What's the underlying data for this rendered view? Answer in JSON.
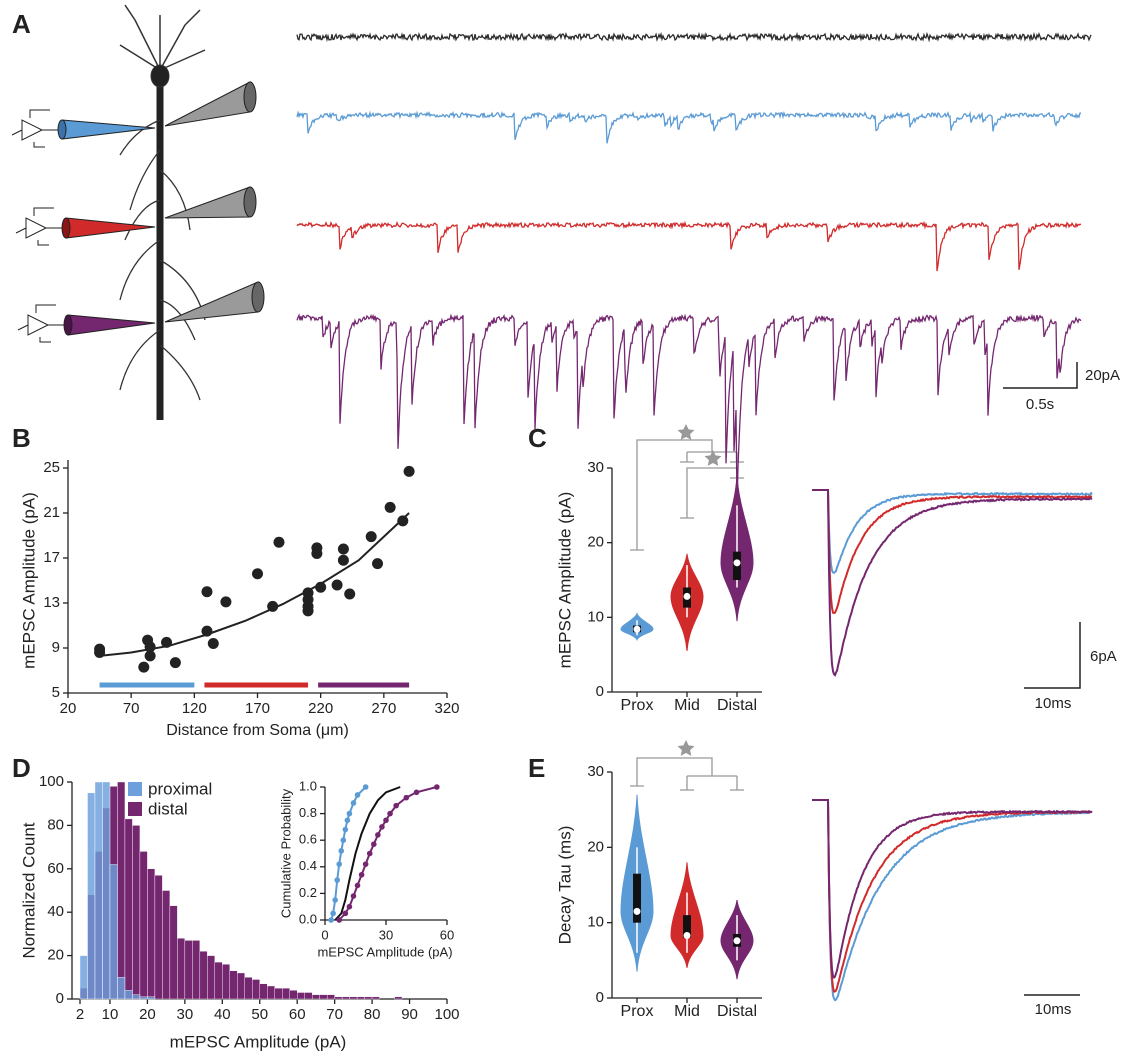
{
  "chart_data": [
    {
      "type": "traces",
      "panel": "A",
      "traces": [
        {
          "color": "#2b2b2b"
        },
        {
          "color": "#5b9bd5"
        },
        {
          "color": "#d12a2a"
        },
        {
          "color": "#74266f"
        }
      ],
      "scale_labels": [
        "20pA",
        "0.5s"
      ]
    },
    {
      "type": "scatter",
      "panel": "B",
      "xlabel": "Distance from Soma (μm)",
      "ylabel": "mEPSC Amplitude (pA)",
      "xlim": [
        20,
        320
      ],
      "xticks": [
        20,
        70,
        120,
        170,
        220,
        270,
        320
      ],
      "ylim": [
        5,
        25
      ],
      "yticks": [
        5,
        9,
        13,
        17,
        21,
        25
      ],
      "series": [
        {
          "color": "#222222",
          "x": [
            45,
            45,
            80,
            83,
            85,
            85,
            98,
            105,
            130,
            130,
            135,
            145,
            170,
            182,
            187,
            210,
            210,
            210,
            210,
            217,
            217,
            220,
            233,
            238,
            238,
            243,
            260,
            265,
            275,
            285,
            290
          ],
          "values": [
            8.9,
            8.6,
            7.3,
            9.7,
            8.3,
            9.1,
            9.5,
            7.7,
            14.0,
            10.5,
            9.4,
            13.1,
            15.6,
            12.7,
            18.4,
            13.9,
            13.3,
            12.3,
            12.7,
            17.4,
            17.9,
            14.4,
            14.6,
            17.8,
            16.8,
            13.8,
            18.9,
            16.5,
            21.5,
            20.3,
            24.7
          ]
        }
      ],
      "fit": {
        "color": "#222222",
        "x": [
          45,
          70,
          100,
          130,
          160,
          190,
          220,
          250,
          290
        ],
        "values": [
          8.3,
          8.6,
          9.2,
          10.2,
          11.4,
          12.9,
          14.7,
          16.8,
          21.0
        ]
      },
      "bands": [
        {
          "color": "#5b9bd5",
          "range": [
            45,
            120
          ]
        },
        {
          "color": "#d12a2a",
          "range": [
            128,
            210
          ]
        },
        {
          "color": "#74266f",
          "range": [
            218,
            290
          ]
        }
      ]
    },
    {
      "type": "violin",
      "panel": "C",
      "ylabel": "mEPSC Amplitude (pA)",
      "categories": [
        "Prox",
        "Mid",
        "Distal"
      ],
      "colors": [
        "#5b9bd5",
        "#d12a2a",
        "#74266f"
      ],
      "ylim": [
        0,
        30
      ],
      "yticks": [
        0,
        10,
        20,
        30
      ],
      "medians": [
        8.4,
        12.8,
        17.3
      ],
      "q1": [
        8.0,
        11.3,
        15.0
      ],
      "q3": [
        8.9,
        14.0,
        18.8
      ],
      "whisker_low": [
        7.6,
        10.0,
        14.0
      ],
      "whisker_high": [
        9.6,
        17.0,
        25.0
      ],
      "min": [
        7.0,
        5.5,
        9.5
      ],
      "max": [
        10.5,
        18.5,
        29.0
      ],
      "scale_labels": [
        "6pA",
        "10ms"
      ]
    },
    {
      "type": "histogram",
      "panel": "D",
      "xlabel": "mEPSC Amplitude (pA)",
      "ylabel": "Normalized Count",
      "xlim": [
        2,
        100
      ],
      "xticks": [
        2,
        10,
        20,
        30,
        40,
        50,
        60,
        70,
        80,
        90,
        100
      ],
      "ylim": [
        0,
        100
      ],
      "yticks": [
        0,
        20,
        40,
        60,
        80,
        100
      ],
      "bins": [
        2,
        4,
        6,
        8,
        10,
        12,
        14,
        16,
        18,
        20,
        22,
        24,
        26,
        28,
        30,
        32,
        34,
        36,
        38,
        40,
        42,
        44,
        46,
        48,
        50,
        52,
        54,
        56,
        58,
        60,
        62,
        64,
        66,
        68,
        70,
        72,
        74,
        76,
        78,
        80,
        82,
        84,
        86,
        88,
        90,
        92,
        94,
        96,
        98,
        100
      ],
      "series": [
        {
          "name": "distal",
          "color": "#74266f",
          "values": [
            5,
            48,
            68,
            88,
            98,
            100,
            83,
            80,
            68,
            60,
            57,
            50,
            43,
            28,
            27,
            27,
            22,
            20,
            17,
            16,
            13,
            12,
            10,
            9,
            7,
            6,
            5,
            5,
            4,
            3,
            3,
            2,
            2,
            2,
            1,
            1,
            1,
            1,
            1,
            1,
            0,
            0,
            1,
            0,
            0,
            0,
            0,
            0,
            0
          ]
        },
        {
          "name": "proximal",
          "color": "#6d9fdc",
          "values": [
            20,
            95,
            100,
            100,
            62,
            10,
            4,
            2,
            1,
            1,
            0,
            0,
            0,
            0,
            0,
            0,
            0,
            0,
            0,
            0,
            0,
            0,
            0,
            0,
            0,
            0,
            0,
            0,
            0,
            0,
            0,
            0,
            0,
            0,
            0,
            0,
            0,
            0,
            0,
            0,
            0,
            0,
            0,
            0,
            0,
            0,
            0,
            0,
            0
          ]
        }
      ]
    },
    {
      "type": "line",
      "xlabel": "mEPSC Amplitude (pA)",
      "ylabel": "Cumulative Probability",
      "xlim": [
        0,
        60
      ],
      "xticks": [
        0,
        30,
        60
      ],
      "ylim": [
        0,
        1
      ],
      "yticks": [
        {
          "value": 0,
          "label": "0.0"
        },
        0.2,
        0.4,
        0.6,
        0.8,
        {
          "value": 1,
          "label": "1.0"
        }
      ],
      "series": [
        {
          "color": "#5b9bd5",
          "markers": true,
          "x": [
            3,
            4,
            5,
            6,
            7,
            8,
            9,
            10,
            11,
            12,
            14,
            16,
            20
          ],
          "values": [
            0,
            0.05,
            0.15,
            0.3,
            0.42,
            0.52,
            0.6,
            0.68,
            0.75,
            0.8,
            0.88,
            0.94,
            1.0
          ]
        },
        {
          "color": "#111111",
          "markers": false,
          "x": [
            5,
            8,
            10,
            12,
            15,
            18,
            22,
            26,
            30,
            37
          ],
          "values": [
            0,
            0.05,
            0.15,
            0.3,
            0.5,
            0.65,
            0.8,
            0.9,
            0.96,
            1.0
          ]
        },
        {
          "color": "#74266f",
          "markers": true,
          "x": [
            7,
            10,
            12,
            14,
            16,
            18,
            20,
            22,
            24,
            26,
            28,
            30,
            32,
            35,
            40,
            45,
            55
          ],
          "values": [
            0,
            0.05,
            0.1,
            0.18,
            0.26,
            0.34,
            0.42,
            0.5,
            0.57,
            0.64,
            0.7,
            0.75,
            0.8,
            0.86,
            0.92,
            0.96,
            1.0
          ]
        }
      ]
    },
    {
      "type": "violin",
      "panel": "E",
      "ylabel": "Decay Tau (ms)",
      "categories": [
        "Prox",
        "Mid",
        "Distal"
      ],
      "colors": [
        "#5b9bd5",
        "#d12a2a",
        "#74266f"
      ],
      "ylim": [
        0,
        30
      ],
      "yticks": [
        0,
        10,
        20,
        30
      ],
      "medians": [
        11.5,
        8.3,
        7.6
      ],
      "q1": [
        10.0,
        8.0,
        6.8
      ],
      "q3": [
        16.5,
        11.0,
        8.5
      ],
      "whisker_low": [
        6.0,
        6.0,
        5.0
      ],
      "whisker_high": [
        20.0,
        14.0,
        11.0
      ],
      "min": [
        3.5,
        4.0,
        2.5
      ],
      "max": [
        27.0,
        18.0,
        13.0
      ],
      "scale_labels": [
        "10ms"
      ]
    }
  ]
}
